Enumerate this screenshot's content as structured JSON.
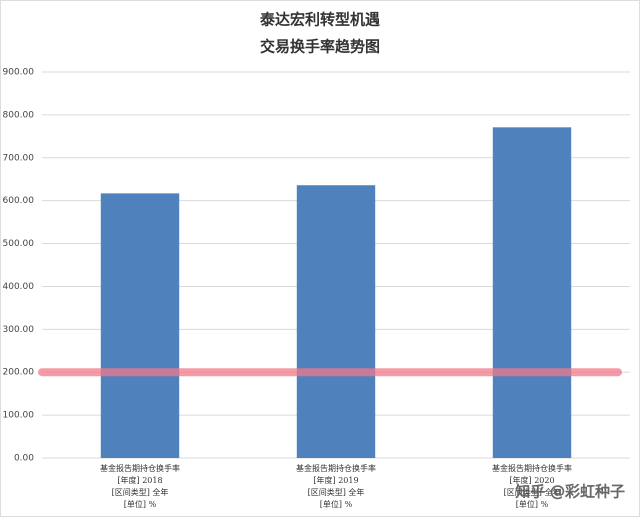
{
  "chart_data": {
    "type": "bar",
    "title": "泰达宏利转型机遇",
    "subtitle": "交易换手率趋势图",
    "categories": [
      "基金报告期持仓换手率\n[年度] 2018\n[区间类型] 全年\n[单位] %",
      "基金报告期持仓换手率\n[年度] 2019\n[区间类型] 全年\n[单位] %",
      "基金报告期持仓换手率\n[年度] 2020\n[区间类型] 全年\n[单位] %"
    ],
    "values": [
      617,
      636,
      771
    ],
    "color": "#4f81bd",
    "ylim": [
      0,
      900
    ],
    "yticks": [
      {
        "value": 0,
        "label": "0.00"
      },
      {
        "value": 100,
        "label": "100.00"
      },
      {
        "value": 200,
        "label": "200.00"
      },
      {
        "value": 300,
        "label": "300.00"
      },
      {
        "value": 400,
        "label": "400.00"
      },
      {
        "value": 500,
        "label": "500.00"
      },
      {
        "value": 600,
        "label": "600.00"
      },
      {
        "value": 700,
        "label": "700.00"
      },
      {
        "value": 800,
        "label": "800.00"
      },
      {
        "value": 900,
        "label": "900.00"
      }
    ],
    "grid": true,
    "reference_line": {
      "value": 200,
      "color": "#f07a8a"
    },
    "watermark": "知乎 @彩虹种子"
  }
}
